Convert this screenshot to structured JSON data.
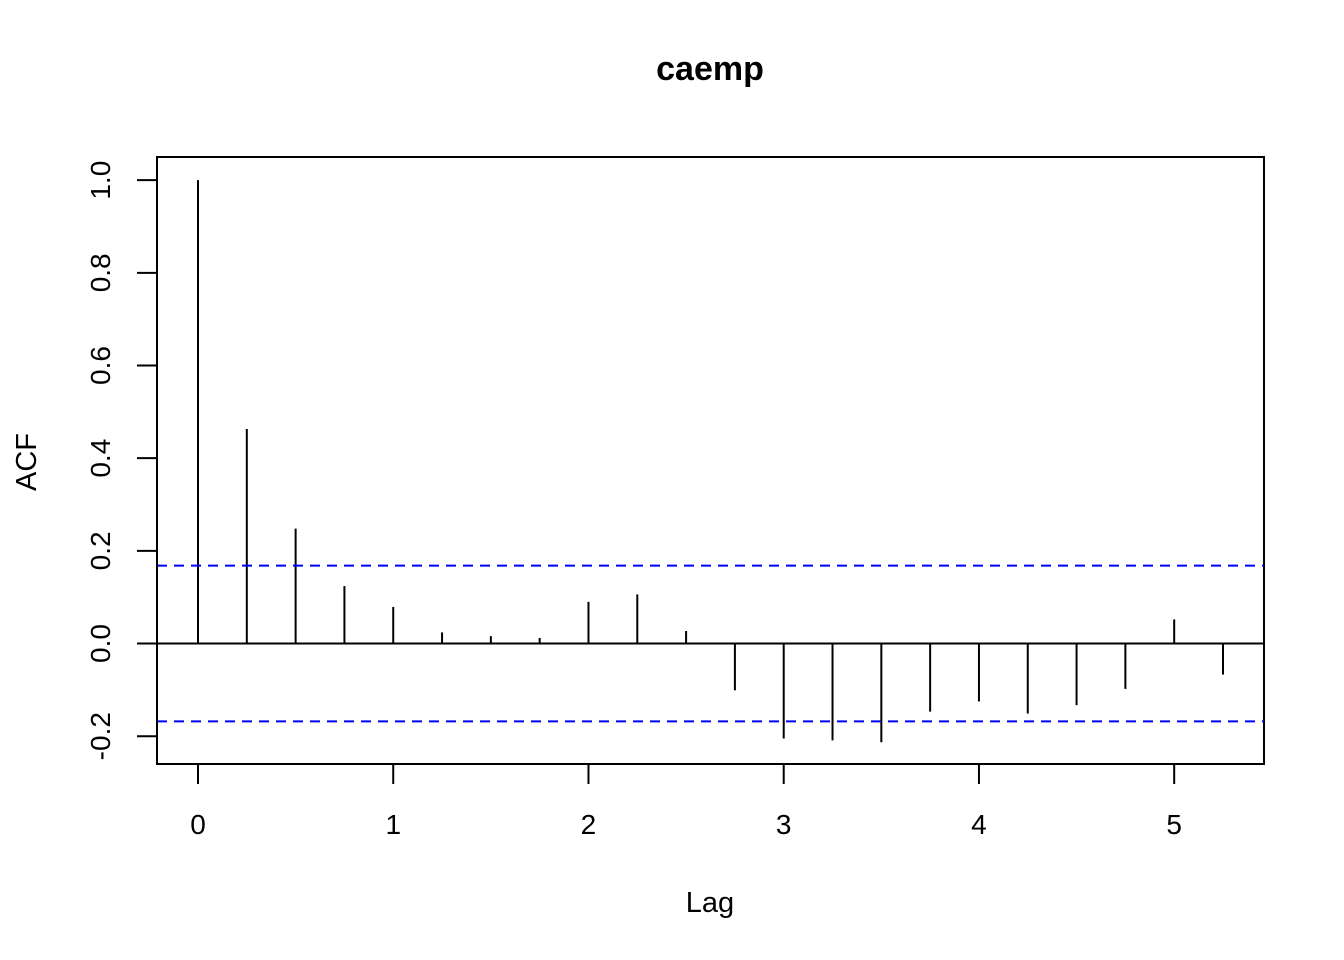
{
  "chart_data": {
    "type": "bar",
    "title": "caemp",
    "xlabel": "Lag",
    "ylabel": "ACF",
    "xlim": [
      -0.21,
      5.46
    ],
    "ylim": [
      -0.26,
      1.05
    ],
    "x_ticks": [
      0,
      1,
      2,
      3,
      4,
      5
    ],
    "x_tick_labels": [
      "0",
      "1",
      "2",
      "3",
      "4",
      "5"
    ],
    "y_ticks": [
      -0.2,
      0.0,
      0.2,
      0.4,
      0.6,
      0.8,
      1.0
    ],
    "y_tick_labels": [
      "-0.2",
      "0.0",
      "0.2",
      "0.4",
      "0.6",
      "0.8",
      "1.0"
    ],
    "lags": [
      0,
      0.25,
      0.5,
      0.75,
      1.0,
      1.25,
      1.5,
      1.75,
      2.0,
      2.25,
      2.5,
      2.75,
      3.0,
      3.25,
      3.5,
      3.75,
      4.0,
      4.25,
      4.5,
      4.75,
      5.0,
      5.25
    ],
    "acf": [
      1.0,
      0.463,
      0.248,
      0.124,
      0.079,
      0.024,
      0.016,
      0.012,
      0.09,
      0.106,
      0.027,
      -0.101,
      -0.205,
      -0.209,
      -0.213,
      -0.147,
      -0.125,
      -0.151,
      -0.133,
      -0.098,
      0.052,
      -0.067
    ],
    "confidence_bound": 0.168,
    "zero_line": 0,
    "grid": false,
    "colors": {
      "bars": "#000000",
      "confidence": "#0000ff",
      "axes": "#000000"
    }
  }
}
